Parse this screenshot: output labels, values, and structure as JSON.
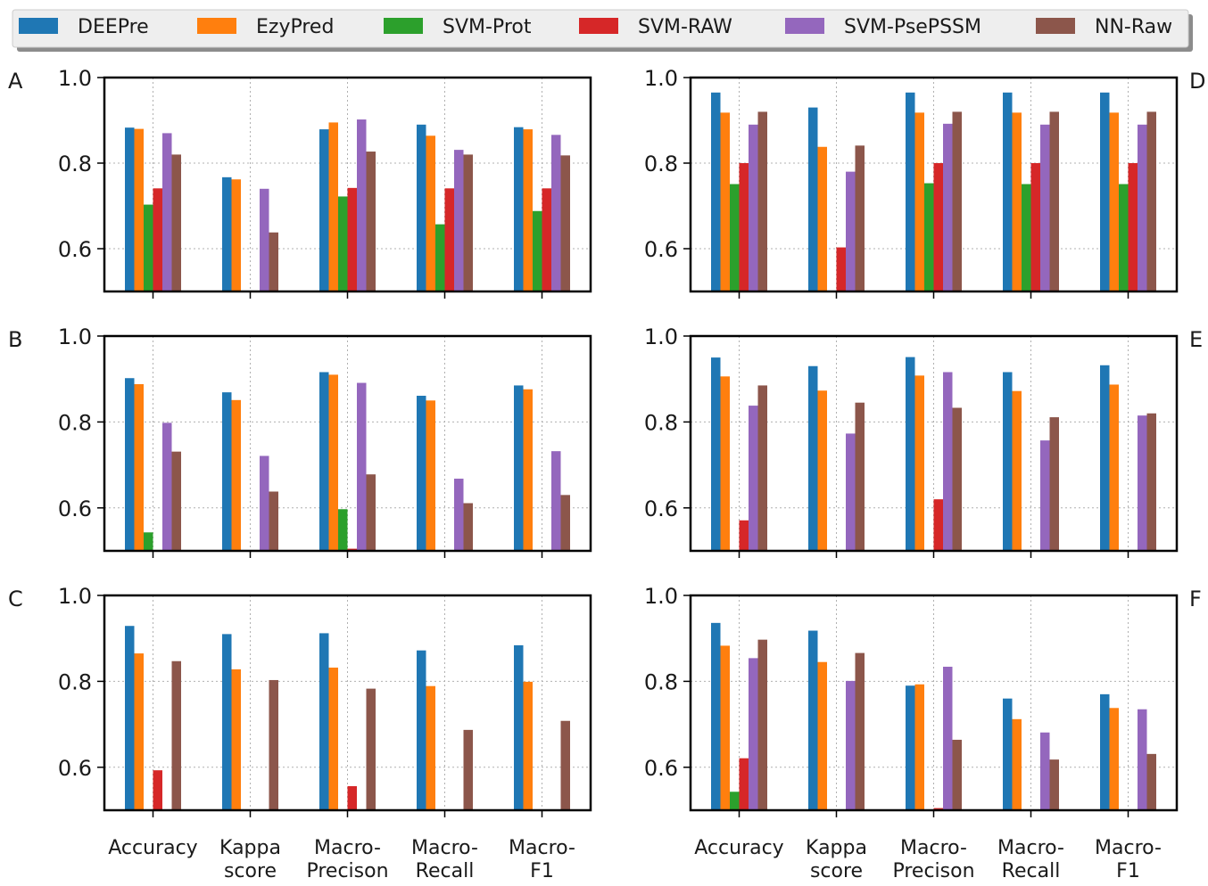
{
  "series_colors": {
    "DEEPre": "#1f77b4",
    "EzyPred": "#ff7f0e",
    "SVM-Prot": "#2ca02c",
    "SVM-RAW": "#d62728",
    "SVM-PsePSSM": "#9467bd",
    "NN-Raw": "#8c564b"
  },
  "legend": [
    "DEEPre",
    "EzyPred",
    "SVM-Prot",
    "SVM-RAW",
    "SVM-PsePSSM",
    "NN-Raw"
  ],
  "chart_data": [
    {
      "type": "bar",
      "panel_label": "A",
      "ylim": [
        0.5,
        1.0
      ],
      "yticks": [
        "0.6",
        "0.8",
        "1.0"
      ],
      "grid": true,
      "categories": [
        [
          "Accuracy"
        ],
        [
          "Kappa",
          "score"
        ],
        [
          "Macro-",
          "Precison"
        ],
        [
          "Macro-",
          "Recall"
        ],
        [
          "Macro-",
          "F1"
        ]
      ],
      "series": [
        {
          "name": "DEEPre",
          "values": [
            0.883,
            0.767,
            0.879,
            0.89,
            0.884
          ]
        },
        {
          "name": "EzyPred",
          "values": [
            0.88,
            0.762,
            0.895,
            0.864,
            0.879
          ]
        },
        {
          "name": "SVM-Prot",
          "values": [
            0.703,
            null,
            0.722,
            0.657,
            0.688
          ]
        },
        {
          "name": "SVM-RAW",
          "values": [
            0.741,
            null,
            0.742,
            0.741,
            0.741
          ]
        },
        {
          "name": "SVM-PsePSSM",
          "values": [
            0.87,
            0.74,
            0.902,
            0.831,
            0.866
          ]
        },
        {
          "name": "NN-Raw",
          "values": [
            0.82,
            0.638,
            0.827,
            0.82,
            0.818
          ]
        }
      ]
    },
    {
      "type": "bar",
      "panel_label": "B",
      "ylim": [
        0.5,
        1.0
      ],
      "yticks": [
        "0.6",
        "0.8",
        "1.0"
      ],
      "grid": true,
      "categories": [
        [
          "Accuracy"
        ],
        [
          "Kappa",
          "score"
        ],
        [
          "Macro-",
          "Precison"
        ],
        [
          "Macro-",
          "Recall"
        ],
        [
          "Macro-",
          "F1"
        ]
      ],
      "series": [
        {
          "name": "DEEPre",
          "values": [
            0.902,
            0.869,
            0.916,
            0.861,
            0.885
          ]
        },
        {
          "name": "EzyPred",
          "values": [
            0.888,
            0.851,
            0.91,
            0.85,
            0.876
          ]
        },
        {
          "name": "SVM-Prot",
          "values": [
            0.543,
            null,
            0.597,
            null,
            null
          ]
        },
        {
          "name": "SVM-RAW",
          "values": [
            null,
            null,
            0.505,
            null,
            null
          ]
        },
        {
          "name": "SVM-PsePSSM",
          "values": [
            0.798,
            0.721,
            0.891,
            0.668,
            0.732
          ]
        },
        {
          "name": "NN-Raw",
          "values": [
            0.731,
            0.638,
            0.678,
            0.611,
            0.63
          ]
        }
      ]
    },
    {
      "type": "bar",
      "panel_label": "C",
      "ylim": [
        0.5,
        1.0
      ],
      "yticks": [
        "0.6",
        "0.8",
        "1.0"
      ],
      "grid": true,
      "categories": [
        [
          "Accuracy"
        ],
        [
          "Kappa",
          "score"
        ],
        [
          "Macro-",
          "Precison"
        ],
        [
          "Macro-",
          "Recall"
        ],
        [
          "Macro-",
          "F1"
        ]
      ],
      "series": [
        {
          "name": "DEEPre",
          "values": [
            0.929,
            0.91,
            0.912,
            0.872,
            0.884
          ]
        },
        {
          "name": "EzyPred",
          "values": [
            0.865,
            0.828,
            0.832,
            0.789,
            0.799
          ]
        },
        {
          "name": "SVM-Prot",
          "values": [
            null,
            null,
            null,
            null,
            null
          ]
        },
        {
          "name": "SVM-RAW",
          "values": [
            0.593,
            null,
            0.556,
            null,
            null
          ]
        },
        {
          "name": "SVM-PsePSSM",
          "values": [
            null,
            null,
            null,
            null,
            null
          ]
        },
        {
          "name": "NN-Raw",
          "values": [
            0.847,
            0.803,
            0.783,
            0.687,
            0.708
          ]
        }
      ]
    },
    {
      "type": "bar",
      "panel_label": "D",
      "ylim": [
        0.5,
        1.0
      ],
      "yticks": [
        "0.6",
        "0.8",
        "1.0"
      ],
      "grid": true,
      "categories": [
        [
          "Accuracy"
        ],
        [
          "Kappa",
          "score"
        ],
        [
          "Macro-",
          "Precison"
        ],
        [
          "Macro-",
          "Recall"
        ],
        [
          "Macro-",
          "F1"
        ]
      ],
      "series": [
        {
          "name": "DEEPre",
          "values": [
            0.965,
            0.93,
            0.965,
            0.965,
            0.965
          ]
        },
        {
          "name": "EzyPred",
          "values": [
            0.918,
            0.838,
            0.918,
            0.918,
            0.918
          ]
        },
        {
          "name": "SVM-Prot",
          "values": [
            0.751,
            null,
            0.753,
            0.751,
            0.751
          ]
        },
        {
          "name": "SVM-RAW",
          "values": [
            0.8,
            0.603,
            0.8,
            0.8,
            0.8
          ]
        },
        {
          "name": "SVM-PsePSSM",
          "values": [
            0.89,
            0.78,
            0.892,
            0.89,
            0.89
          ]
        },
        {
          "name": "NN-Raw",
          "values": [
            0.92,
            0.841,
            0.92,
            0.92,
            0.92
          ]
        }
      ]
    },
    {
      "type": "bar",
      "panel_label": "E",
      "ylim": [
        0.5,
        1.0
      ],
      "yticks": [
        "0.6",
        "0.8",
        "1.0"
      ],
      "grid": true,
      "categories": [
        [
          "Accuracy"
        ],
        [
          "Kappa",
          "score"
        ],
        [
          "Macro-",
          "Precison"
        ],
        [
          "Macro-",
          "Recall"
        ],
        [
          "Macro-",
          "F1"
        ]
      ],
      "series": [
        {
          "name": "DEEPre",
          "values": [
            0.95,
            0.93,
            0.951,
            0.916,
            0.932
          ]
        },
        {
          "name": "EzyPred",
          "values": [
            0.906,
            0.873,
            0.908,
            0.872,
            0.887
          ]
        },
        {
          "name": "SVM-Prot",
          "values": [
            null,
            null,
            null,
            null,
            null
          ]
        },
        {
          "name": "SVM-RAW",
          "values": [
            0.571,
            null,
            0.62,
            null,
            null
          ]
        },
        {
          "name": "SVM-PsePSSM",
          "values": [
            0.838,
            0.773,
            0.916,
            0.757,
            0.815
          ]
        },
        {
          "name": "NN-Raw",
          "values": [
            0.885,
            0.845,
            0.833,
            0.811,
            0.82
          ]
        }
      ]
    },
    {
      "type": "bar",
      "panel_label": "F",
      "ylim": [
        0.5,
        1.0
      ],
      "yticks": [
        "0.6",
        "0.8",
        "1.0"
      ],
      "grid": true,
      "categories": [
        [
          "Accuracy"
        ],
        [
          "Kappa",
          "score"
        ],
        [
          "Macro-",
          "Precison"
        ],
        [
          "Macro-",
          "Recall"
        ],
        [
          "Macro-",
          "F1"
        ]
      ],
      "series": [
        {
          "name": "DEEPre",
          "values": [
            0.936,
            0.918,
            0.79,
            0.76,
            0.77
          ]
        },
        {
          "name": "EzyPred",
          "values": [
            0.883,
            0.845,
            0.793,
            0.712,
            0.738
          ]
        },
        {
          "name": "SVM-Prot",
          "values": [
            0.543,
            null,
            null,
            null,
            null
          ]
        },
        {
          "name": "SVM-RAW",
          "values": [
            0.621,
            null,
            0.505,
            null,
            null
          ]
        },
        {
          "name": "SVM-PsePSSM",
          "values": [
            0.854,
            0.801,
            0.834,
            0.681,
            0.735
          ]
        },
        {
          "name": "NN-Raw",
          "values": [
            0.897,
            0.866,
            0.664,
            0.618,
            0.631
          ]
        }
      ]
    }
  ]
}
